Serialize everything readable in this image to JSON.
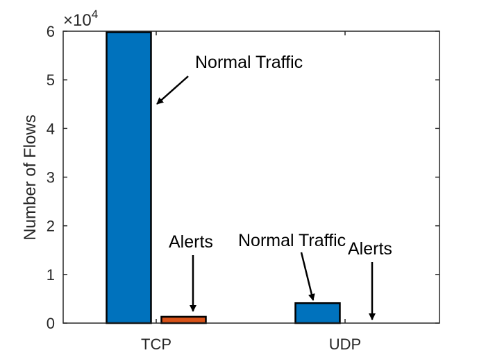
{
  "chart_data": {
    "type": "bar",
    "categories": [
      "TCP",
      "UDP"
    ],
    "series": [
      {
        "name": "",
        "values": [
          59800,
          4100
        ]
      },
      {
        "name": "",
        "values": [
          1300,
          0
        ]
      }
    ],
    "xlabel": "",
    "ylabel": "Number of Flows",
    "ylim": [
      0,
      60000
    ],
    "yticks": [
      0,
      1,
      2,
      3,
      4,
      5,
      6
    ],
    "y_multiplier": "×10",
    "y_multiplier_exponent": "4",
    "grid": false,
    "colors": [
      "#0072BD",
      "#D95319"
    ],
    "annotations": [
      {
        "text": "Normal Traffic",
        "category": "TCP",
        "series": 0
      },
      {
        "text": "Alerts",
        "category": "TCP",
        "series": 1
      },
      {
        "text": "Normal Traffic",
        "category": "UDP",
        "series": 0
      },
      {
        "text": "Alerts",
        "category": "UDP",
        "series": 1
      }
    ]
  }
}
